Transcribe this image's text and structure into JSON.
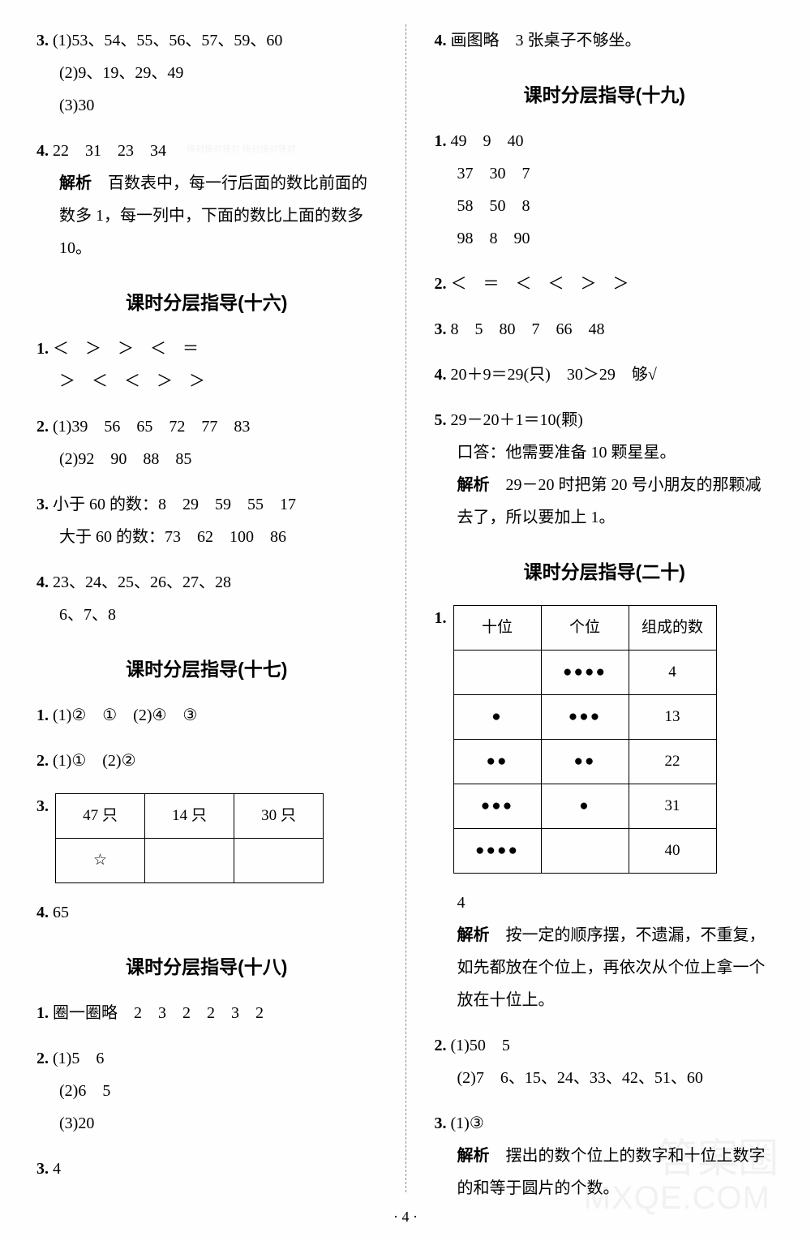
{
  "left": {
    "q3": {
      "num": "3.",
      "line1": "(1)53、54、55、56、57、59、60",
      "line2": "(2)9、19、29、49",
      "line3": "(3)30"
    },
    "q4": {
      "num": "4.",
      "values": "22　31　23　34",
      "analysis_label": "解析",
      "analysis": "百数表中，每一行后面的数比前面的数多 1，每一列中，下面的数比上面的数多 10。"
    },
    "s16": {
      "title": "课时分层指导(十六)",
      "q1": {
        "num": "1.",
        "l1": "＜　＞　＞　＜　＝",
        "l2": "＞　＜　＜　＞　＞"
      },
      "q2": {
        "num": "2.",
        "l1": "(1)39　56　65　72　77　83",
        "l2": "(2)92　90　88　85"
      },
      "q3": {
        "num": "3.",
        "l1": "小于 60 的数：8　29　59　55　17",
        "l2": "大于 60 的数：73　62　100　86"
      },
      "q4": {
        "num": "4.",
        "l1": "23、24、25、26、27、28",
        "l2": "6、7、8"
      }
    },
    "s17": {
      "title": "课时分层指导(十七)",
      "q1": {
        "num": "1.",
        "text": "(1)②　①　(2)④　③"
      },
      "q2": {
        "num": "2.",
        "text": "(1)①　(2)②"
      },
      "q3": {
        "num": "3.",
        "r1c1": "47 只",
        "r1c2": "14 只",
        "r1c3": "30 只",
        "r2c1": "☆",
        "r2c2": "",
        "r2c3": ""
      },
      "q4": {
        "num": "4.",
        "text": "65"
      }
    },
    "s18": {
      "title": "课时分层指导(十八)",
      "q1": {
        "num": "1.",
        "text": "圈一圈略　2　3　2　2　3　2"
      },
      "q2": {
        "num": "2.",
        "l1": "(1)5　6",
        "l2": "(2)6　5",
        "l3": "(3)20"
      },
      "q3": {
        "num": "3.",
        "text": "4"
      }
    }
  },
  "right": {
    "q4": {
      "num": "4.",
      "text": "画图略　3 张桌子不够坐。"
    },
    "s19": {
      "title": "课时分层指导(十九)",
      "q1": {
        "num": "1.",
        "l1": "49　9　40",
        "l2": "37　30　7",
        "l3": "58　50　8",
        "l4": "98　8　90"
      },
      "q2": {
        "num": "2.",
        "text": "＜　＝　＜　＜　＞　＞"
      },
      "q3": {
        "num": "3.",
        "text": "8　5　80　7　66　48"
      },
      "q4": {
        "num": "4.",
        "text": "20＋9＝29(只)　30＞29　够√"
      },
      "q5": {
        "num": "5.",
        "l1": "29－20＋1＝10(颗)",
        "l2": "口答：他需要准备 10 颗星星。",
        "analysis_label": "解析",
        "analysis": "29－20 时把第 20 号小朋友的那颗减去了，所以要加上 1。"
      }
    },
    "s20": {
      "title": "课时分层指导(二十)",
      "q1": {
        "num": "1.",
        "h1": "十位",
        "h2": "个位",
        "h3": "组成的数",
        "rows": [
          {
            "c1": "",
            "c2": "●●●●",
            "c3": "4"
          },
          {
            "c1": "●",
            "c2": "●●●",
            "c3": "13"
          },
          {
            "c1": "●●",
            "c2": "●●",
            "c3": "22"
          },
          {
            "c1": "●●●",
            "c2": "●",
            "c3": "31"
          },
          {
            "c1": "●●●●",
            "c2": "",
            "c3": "40"
          }
        ],
        "after": "4",
        "analysis_label": "解析",
        "analysis": "按一定的顺序摆，不遗漏，不重复，如先都放在个位上，再依次从个位上拿一个放在十位上。"
      },
      "q2": {
        "num": "2.",
        "l1": "(1)50　5",
        "l2": "(2)7　6、15、24、33、42、51、60"
      },
      "q3": {
        "num": "3.",
        "l1": "(1)③",
        "analysis_label": "解析",
        "analysis": "摆出的数个位上的数字和十位上数字的和等于圆片的个数。"
      }
    }
  },
  "footer": "· 4 ·",
  "watermarks": {
    "wm1": "MXQE.COM",
    "wm2": "答案圈",
    "wm3": "快对快对快对\n快对快对快对"
  }
}
